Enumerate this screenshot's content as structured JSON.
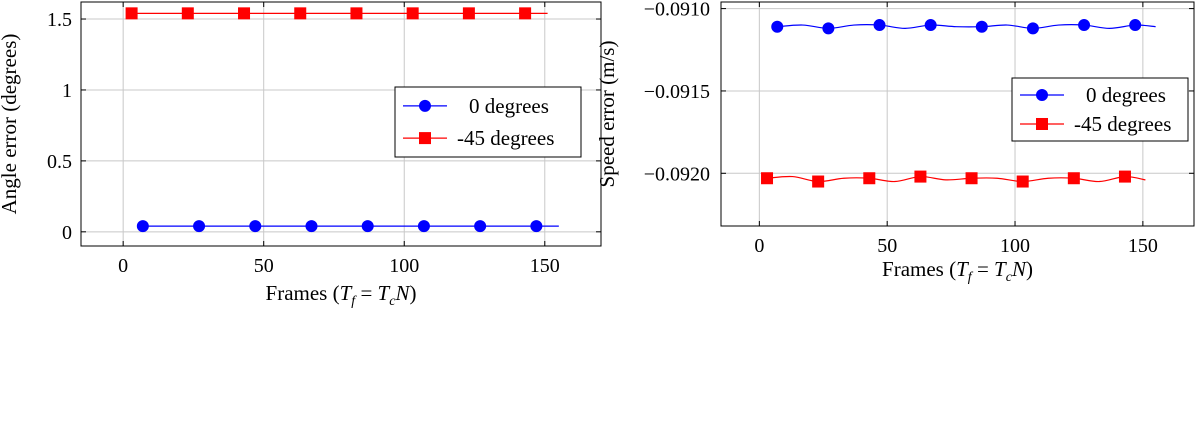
{
  "chart_data": [
    {
      "type": "line",
      "xlabel": "Frames",
      "xlabel_formula": {
        "lhs": "T",
        "lhs_sub": "f",
        "rhs": "T",
        "rhs_sub": "c",
        "rhs_tail": "N"
      },
      "ylabel": "Angle error (degrees)",
      "xlim": [
        -15,
        170
      ],
      "ylim": [
        -0.1,
        1.62
      ],
      "xticks": [
        0,
        50,
        100,
        150
      ],
      "xtick_labels": [
        "0",
        "50",
        "100",
        "150"
      ],
      "yticks": [
        0,
        0.5,
        1,
        1.5
      ],
      "ytick_labels": [
        "0",
        "0.5",
        "1",
        "1.5"
      ],
      "grid": true,
      "legend_position": "center-right",
      "series": [
        {
          "name": "0 degrees",
          "color": "#0000ff",
          "marker": "circle",
          "x": [
            7,
            27,
            47,
            67,
            87,
            107,
            127,
            147
          ],
          "y": [
            0.04,
            0.04,
            0.04,
            0.04,
            0.04,
            0.04,
            0.04,
            0.04
          ],
          "line_x": [
            7,
            155
          ],
          "line_y": [
            0.04,
            0.04
          ]
        },
        {
          "name": "-45 degrees",
          "color": "#ff0000",
          "marker": "square",
          "x": [
            3,
            23,
            43,
            63,
            83,
            103,
            123,
            143
          ],
          "y": [
            1.54,
            1.54,
            1.54,
            1.54,
            1.54,
            1.54,
            1.54,
            1.54
          ],
          "line_x": [
            3,
            151
          ],
          "line_y": [
            1.54,
            1.54
          ]
        }
      ]
    },
    {
      "type": "line",
      "xlabel": "Frames",
      "xlabel_formula": {
        "lhs": "T",
        "lhs_sub": "f",
        "rhs": "T",
        "rhs_sub": "c",
        "rhs_tail": "N"
      },
      "ylabel": "Speed error (m/s)",
      "xlim": [
        -15,
        170
      ],
      "ylim": [
        -0.09232,
        -0.09096
      ],
      "xticks": [
        0,
        50,
        100,
        150
      ],
      "xtick_labels": [
        "0",
        "50",
        "100",
        "150"
      ],
      "yticks": [
        -0.092,
        -0.0915,
        -0.091
      ],
      "ytick_labels": [
        "−0.0920",
        "−0.0915",
        "−0.0910"
      ],
      "grid": true,
      "legend_position": "center-right",
      "series": [
        {
          "name": "0 degrees",
          "color": "#0000ff",
          "marker": "circle",
          "x": [
            7,
            27,
            47,
            67,
            87,
            107,
            127,
            147
          ],
          "y": [
            -0.09111,
            -0.09112,
            -0.0911,
            -0.0911,
            -0.09111,
            -0.09112,
            -0.0911,
            -0.0911
          ],
          "line_x": [
            7,
            17,
            27,
            37,
            47,
            57,
            67,
            77,
            87,
            97,
            107,
            117,
            127,
            137,
            147,
            155
          ],
          "line_y": [
            -0.09111,
            -0.0911,
            -0.09112,
            -0.0911,
            -0.0911,
            -0.09112,
            -0.0911,
            -0.09111,
            -0.09111,
            -0.0911,
            -0.09112,
            -0.0911,
            -0.0911,
            -0.09112,
            -0.0911,
            -0.09111
          ]
        },
        {
          "name": "-45 degrees",
          "color": "#ff0000",
          "marker": "square",
          "x": [
            3,
            23,
            43,
            63,
            83,
            103,
            123,
            143
          ],
          "y": [
            -0.09203,
            -0.09205,
            -0.09203,
            -0.09202,
            -0.09203,
            -0.09205,
            -0.09203,
            -0.09202
          ],
          "line_x": [
            3,
            13,
            23,
            33,
            43,
            53,
            63,
            73,
            83,
            93,
            103,
            113,
            123,
            133,
            143,
            151
          ],
          "line_y": [
            -0.09203,
            -0.09202,
            -0.09205,
            -0.09203,
            -0.09203,
            -0.09205,
            -0.09202,
            -0.09204,
            -0.09203,
            -0.09203,
            -0.09205,
            -0.09203,
            -0.09203,
            -0.09205,
            -0.09202,
            -0.09204
          ]
        }
      ]
    }
  ]
}
